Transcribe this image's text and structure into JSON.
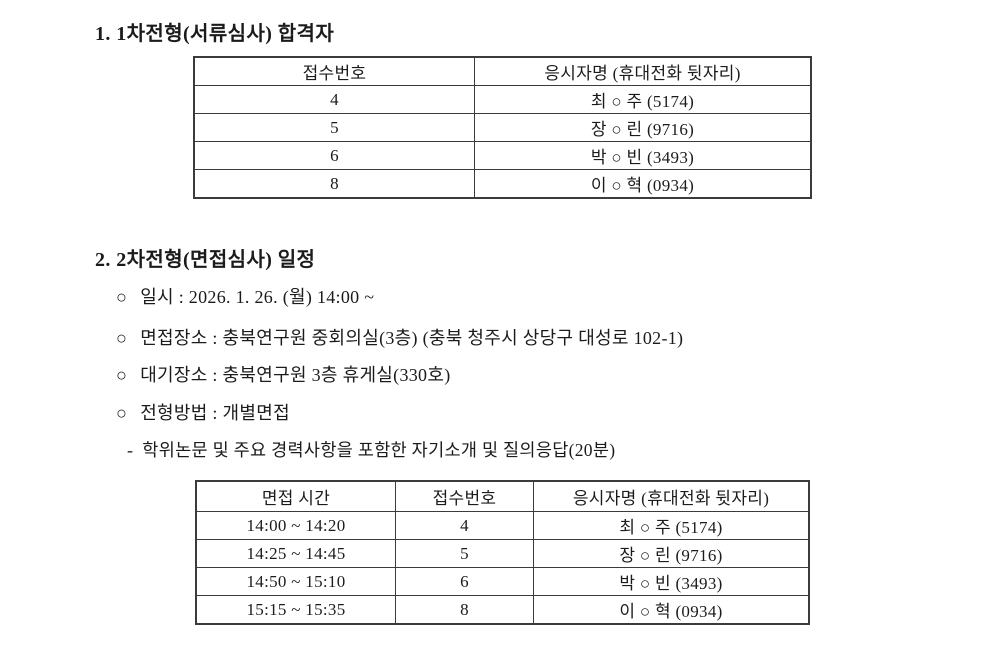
{
  "section1": {
    "title": "1. 1차전형(서류심사) 합격자",
    "table": {
      "headers": [
        "접수번호",
        "응시자명 (휴대전화 뒷자리)"
      ],
      "rows": [
        [
          "4",
          "최 ○ 주 (5174)"
        ],
        [
          "5",
          "장 ○ 린 (9716)"
        ],
        [
          "6",
          "박 ○ 빈 (3493)"
        ],
        [
          "8",
          "이 ○ 혁 (0934)"
        ]
      ]
    }
  },
  "section2": {
    "title": "2. 2차전형(면접심사) 일정",
    "bullets": [
      {
        "marker": "○",
        "text": "일시 : 2026. 1. 26. (월) 14:00 ~"
      },
      {
        "marker": "○",
        "text": "면접장소 : 충북연구원 중회의실(3층) (충북 청주시 상당구 대성로 102-1)"
      },
      {
        "marker": "○",
        "text": "대기장소 : 충북연구원 3층 휴게실(330호)"
      },
      {
        "marker": "○",
        "text": "전형방법 : 개별면접"
      },
      {
        "marker": "-",
        "text": "학위논문 및 주요 경력사항을 포함한 자기소개 및 질의응답(20분)"
      }
    ],
    "table": {
      "headers": [
        "면접 시간",
        "접수번호",
        "응시자명 (휴대전화 뒷자리)"
      ],
      "rows": [
        [
          "14:00 ~ 14:20",
          "4",
          "최 ○ 주 (5174)"
        ],
        [
          "14:25 ~ 14:45",
          "5",
          "장 ○ 린 (9716)"
        ],
        [
          "14:50 ~ 15:10",
          "6",
          "박 ○ 빈 (3493)"
        ],
        [
          "15:15 ~ 15:35",
          "8",
          "이 ○ 혁 (0934)"
        ]
      ]
    }
  },
  "colors": {
    "text": "#1b1b1b",
    "border": "#3b3b3b",
    "background": "#ffffff"
  }
}
